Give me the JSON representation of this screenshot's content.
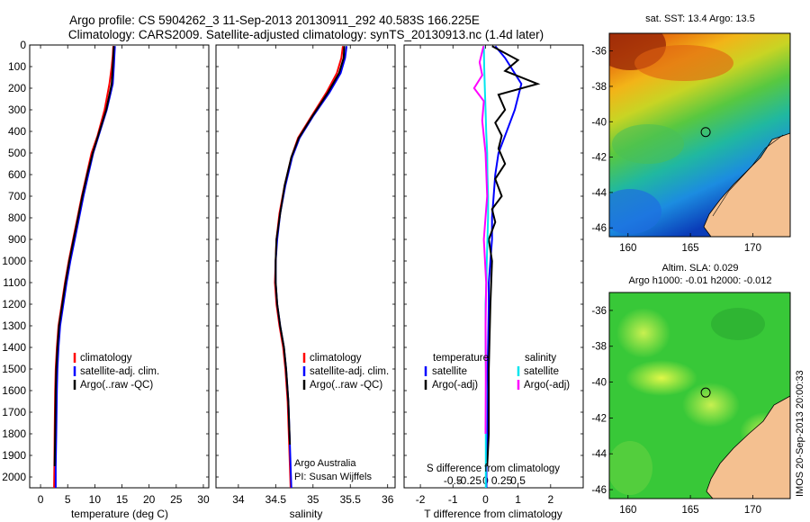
{
  "title_line1": "Argo profile: CS 5904262_3 11-Sep-2013 20130911_292 40.583S 166.225E",
  "title_line2": "Climatology: CARS2009. Satellite-adjusted climatology: synTS_20130913.nc (1.4d later)",
  "watermark": "IMOS 20-Sep-2013 20:00:33",
  "colors": {
    "climatology": "#ff0000",
    "satellite": "#0000ff",
    "argo": "#000000",
    "sal_satellite": "#00e5ee",
    "sal_argo": "#ff00ff",
    "land": "#f4c090"
  },
  "chart_data": [
    {
      "type": "line",
      "panel": "temperature",
      "xlabel": "temperature (deg C)",
      "xlim": [
        -2,
        31
      ],
      "xticks": [
        "0",
        "5",
        "10",
        "15",
        "20",
        "25",
        "30"
      ],
      "ylim": [
        2050,
        0
      ],
      "yticks": [
        "0",
        "100",
        "200",
        "300",
        "400",
        "500",
        "600",
        "700",
        "800",
        "900",
        "1000",
        "1100",
        "1200",
        "1300",
        "1400",
        "1500",
        "1600",
        "1700",
        "1800",
        "1900",
        "2000"
      ],
      "legend": [
        "climatology",
        "satellite-adj. clim.",
        "Argo(..raw -QC)"
      ],
      "series": [
        {
          "name": "climatology",
          "color_key": "climatology",
          "x": [
            13.4,
            13.3,
            13.1,
            12.7,
            11.8,
            10.5,
            9.4,
            8.5,
            7.6,
            6.8,
            6.0,
            5.2,
            4.5,
            3.9,
            3.3,
            3.0,
            2.8,
            2.7,
            2.6,
            2.55,
            2.5
          ],
          "y": [
            5,
            50,
            100,
            180,
            300,
            420,
            500,
            600,
            700,
            800,
            900,
            1000,
            1100,
            1200,
            1300,
            1400,
            1500,
            1600,
            1800,
            1950,
            2050
          ]
        },
        {
          "name": "satellite-adj. clim.",
          "color_key": "satellite",
          "x": [
            13.7,
            13.6,
            13.5,
            13.3,
            12.2,
            10.7,
            9.7,
            8.8,
            7.9,
            7.1,
            6.3,
            5.5,
            4.8,
            4.2,
            3.6,
            3.3,
            3.1,
            3.0,
            2.9,
            2.8,
            2.8
          ],
          "y": [
            5,
            50,
            100,
            180,
            300,
            420,
            500,
            600,
            700,
            800,
            900,
            1000,
            1100,
            1200,
            1300,
            1400,
            1500,
            1600,
            1800,
            1950,
            2050
          ]
        },
        {
          "name": "Argo(..raw -QC)",
          "color_key": "argo",
          "x": [
            13.5,
            13.4,
            13.3,
            13.1,
            12.1,
            10.6,
            9.6,
            8.6,
            7.7,
            6.9,
            6.1,
            5.3,
            4.6,
            4.0,
            3.4,
            3.1,
            2.9,
            2.8,
            2.7,
            2.6
          ],
          "y": [
            5,
            50,
            100,
            180,
            300,
            420,
            500,
            600,
            700,
            800,
            900,
            1000,
            1100,
            1200,
            1300,
            1400,
            1500,
            1600,
            1800,
            1950
          ]
        }
      ]
    },
    {
      "type": "line",
      "panel": "salinity",
      "xlabel": "salinity",
      "xlim": [
        33.7,
        36.1
      ],
      "xticks": [
        "34",
        "34.5",
        "35",
        "35.5",
        "36"
      ],
      "ylim": [
        2050,
        0
      ],
      "legend": [
        "climatology",
        "satellite-adj. clim.",
        "Argo(..raw -QC)"
      ],
      "annotation": [
        "Argo Australia",
        "PI: Susan Wijffels"
      ],
      "series": [
        {
          "name": "climatology",
          "color_key": "climatology",
          "x": [
            35.4,
            35.38,
            35.32,
            35.18,
            34.98,
            34.8,
            34.71,
            34.62,
            34.55,
            34.51,
            34.5,
            34.49,
            34.51,
            34.55,
            34.6,
            34.63,
            34.66,
            34.68,
            34.7
          ],
          "y": [
            5,
            60,
            130,
            220,
            330,
            430,
            520,
            650,
            780,
            900,
            1000,
            1100,
            1200,
            1300,
            1400,
            1500,
            1650,
            1850,
            2050
          ]
        },
        {
          "name": "satellite-adj. clim.",
          "color_key": "satellite",
          "x": [
            35.45,
            35.43,
            35.37,
            35.22,
            35.0,
            34.82,
            34.72,
            34.63,
            34.56,
            34.52,
            34.5,
            34.5,
            34.52,
            34.56,
            34.61,
            34.64,
            34.67,
            34.69,
            34.71
          ],
          "y": [
            5,
            60,
            130,
            220,
            330,
            430,
            520,
            650,
            780,
            900,
            1000,
            1100,
            1200,
            1300,
            1400,
            1500,
            1650,
            1850,
            2050
          ]
        },
        {
          "name": "Argo(..raw -QC)",
          "color_key": "argo",
          "x": [
            35.42,
            35.41,
            35.35,
            35.2,
            34.99,
            34.81,
            34.71,
            34.62,
            34.56,
            34.51,
            34.5,
            34.5,
            34.52,
            34.56,
            34.61,
            34.64,
            34.67,
            34.69
          ],
          "y": [
            5,
            60,
            130,
            220,
            330,
            430,
            520,
            650,
            780,
            900,
            1000,
            1100,
            1200,
            1300,
            1400,
            1500,
            1650,
            1850
          ]
        }
      ]
    },
    {
      "type": "line",
      "panel": "difference",
      "xlabel": "T difference from climatology",
      "xlabel_top": "S difference from climatology",
      "xlim": [
        -2.5,
        3
      ],
      "xticks": [
        "-2",
        "-1",
        "0",
        "1",
        "2"
      ],
      "sticks": [
        "-0.5",
        "-0.25",
        "0",
        "0.25",
        "0.5"
      ],
      "ylim": [
        2050,
        0
      ],
      "legend_temperature": {
        "header": "temperature",
        "items": [
          "satellite",
          "Argo(-adj)"
        ]
      },
      "legend_salinity": {
        "header": "salinity",
        "items": [
          "satellite",
          "Argo(-adj)"
        ]
      },
      "series": [
        {
          "name": "T satellite",
          "color_key": "satellite",
          "x": [
            0.3,
            0.6,
            1.1,
            0.9,
            0.6,
            0.4,
            0.3,
            0.25,
            0.2,
            0.2,
            0.15,
            0.1,
            0.1,
            0.08,
            0.05,
            0.05,
            0.03,
            0.03
          ],
          "y": [
            5,
            60,
            180,
            300,
            420,
            500,
            600,
            700,
            800,
            900,
            1000,
            1100,
            1200,
            1400,
            1600,
            1800,
            1950,
            2050
          ]
        },
        {
          "name": "T Argo(-adj)",
          "color_key": "argo",
          "x": [
            0.2,
            1.0,
            0.6,
            1.6,
            0.4,
            0.6,
            0.3,
            0.5,
            0.4,
            0.6,
            0.3,
            0.5,
            0.2,
            0.3,
            0.1,
            0.2,
            0.15,
            0.1,
            0.1,
            0.05
          ],
          "y": [
            5,
            70,
            120,
            180,
            230,
            300,
            360,
            420,
            480,
            550,
            620,
            700,
            760,
            820,
            900,
            1000,
            1200,
            1500,
            1800,
            1950
          ]
        },
        {
          "name": "S satellite",
          "color_key": "sal_satellite",
          "x": [
            -0.05,
            -0.04,
            -0.02,
            0.0,
            0.02,
            0.05,
            0.06,
            0.08,
            0.08,
            0.06,
            0.04,
            0.03,
            0.0,
            0.0,
            0.02,
            0.01,
            0.01
          ],
          "y": [
            5,
            100,
            200,
            300,
            400,
            500,
            600,
            700,
            800,
            900,
            1000,
            1100,
            1200,
            1400,
            1600,
            1800,
            2050
          ]
        },
        {
          "name": "S Argo(-adj)",
          "color_key": "sal_argo",
          "x": [
            -0.06,
            -0.18,
            -0.1,
            -0.35,
            -0.05,
            -0.1,
            0.0,
            0.05,
            -0.05,
            0.02,
            0.0,
            0.01,
            0.0
          ],
          "y": [
            5,
            80,
            140,
            200,
            260,
            350,
            500,
            700,
            900,
            1100,
            1300,
            1500,
            1800
          ]
        }
      ]
    },
    {
      "type": "heatmap",
      "panel": "sst_map",
      "title": "sat. SST: 13.4  Argo: 13.5",
      "xticks": [
        "160",
        "165",
        "170"
      ],
      "yticks": [
        "-36",
        "-38",
        "-40",
        "-42",
        "-44",
        "-46"
      ],
      "xlim": [
        158.5,
        173
      ],
      "ylim": [
        -46.5,
        -35.0
      ],
      "float_position": {
        "lon": 166.225,
        "lat": -40.583
      }
    },
    {
      "type": "heatmap",
      "panel": "sla_map",
      "title_line1": "Altim. SLA: 0.029",
      "title_line2": "Argo h1000: -0.01 h2000: -0.012",
      "xticks": [
        "160",
        "165",
        "170"
      ],
      "yticks": [
        "-36",
        "-38",
        "-40",
        "-42",
        "-44",
        "-46"
      ],
      "xlim": [
        158.5,
        173
      ],
      "ylim": [
        -46.5,
        -35.0
      ],
      "float_position": {
        "lon": 166.225,
        "lat": -40.583
      }
    }
  ]
}
